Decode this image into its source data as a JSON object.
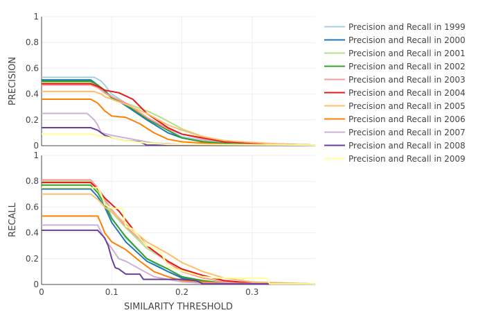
{
  "chart_data": {
    "type": "line",
    "x_axis": {
      "label": "SIMILARITY THRESHOLD",
      "range": [
        0,
        0.39
      ],
      "ticks": [
        0,
        0.1,
        0.2,
        0.3
      ],
      "tick_labels": [
        "0",
        "0.1",
        "0.2",
        "0.3"
      ]
    },
    "panels": [
      {
        "id": "precision",
        "ylabel": "PRECISION",
        "ylim": [
          0,
          1
        ],
        "yticks": [
          0,
          0.2,
          0.4,
          0.6,
          0.8,
          1
        ],
        "ytick_labels": [
          "0",
          "0.2",
          "0.4",
          "0.6",
          "0.8",
          "1"
        ]
      },
      {
        "id": "recall",
        "ylabel": "RECALL",
        "ylim": [
          0,
          1
        ],
        "yticks": [
          0,
          0.2,
          0.4,
          0.6,
          0.8,
          1
        ],
        "ytick_labels": [
          "0",
          "0.2",
          "0.4",
          "0.6",
          "0.8",
          "1"
        ]
      }
    ],
    "legend_position": "right",
    "series": [
      {
        "name": "Precision and Recall in 1999",
        "color": "#a6cee3",
        "precision": [
          [
            0,
            0.53
          ],
          [
            0.075,
            0.53
          ],
          [
            0.085,
            0.5
          ],
          [
            0.09,
            0.47
          ],
          [
            0.1,
            0.4
          ],
          [
            0.12,
            0.33
          ],
          [
            0.15,
            0.22
          ],
          [
            0.18,
            0.12
          ],
          [
            0.2,
            0.07
          ],
          [
            0.23,
            0.04
          ],
          [
            0.27,
            0.02
          ],
          [
            0.3,
            0.01
          ],
          [
            0.39,
            0.005
          ]
        ],
        "recall": [
          [
            0,
            0.79
          ],
          [
            0.07,
            0.79
          ],
          [
            0.08,
            0.74
          ],
          [
            0.09,
            0.65
          ],
          [
            0.1,
            0.52
          ],
          [
            0.12,
            0.36
          ],
          [
            0.15,
            0.2
          ],
          [
            0.18,
            0.1
          ],
          [
            0.2,
            0.06
          ],
          [
            0.23,
            0.02
          ],
          [
            0.26,
            0.01
          ],
          [
            0.39,
            0.005
          ]
        ]
      },
      {
        "name": "Precision and Recall in 2000",
        "color": "#1f78b4",
        "precision": [
          [
            0,
            0.51
          ],
          [
            0.07,
            0.51
          ],
          [
            0.08,
            0.47
          ],
          [
            0.09,
            0.42
          ],
          [
            0.1,
            0.38
          ],
          [
            0.12,
            0.31
          ],
          [
            0.15,
            0.2
          ],
          [
            0.18,
            0.1
          ],
          [
            0.2,
            0.06
          ],
          [
            0.23,
            0.03
          ],
          [
            0.27,
            0.015
          ],
          [
            0.39,
            0.005
          ]
        ],
        "recall": [
          [
            0,
            0.74
          ],
          [
            0.07,
            0.74
          ],
          [
            0.08,
            0.68
          ],
          [
            0.09,
            0.6
          ],
          [
            0.1,
            0.48
          ],
          [
            0.12,
            0.33
          ],
          [
            0.15,
            0.18
          ],
          [
            0.18,
            0.1
          ],
          [
            0.2,
            0.05
          ],
          [
            0.23,
            0.02
          ],
          [
            0.26,
            0.01
          ],
          [
            0.39,
            0.005
          ]
        ]
      },
      {
        "name": "Precision and Recall in 2001",
        "color": "#b2df8a",
        "precision": [
          [
            0,
            0.49
          ],
          [
            0.07,
            0.49
          ],
          [
            0.08,
            0.46
          ],
          [
            0.09,
            0.41
          ],
          [
            0.1,
            0.37
          ],
          [
            0.12,
            0.33
          ],
          [
            0.15,
            0.27
          ],
          [
            0.17,
            0.22
          ],
          [
            0.2,
            0.13
          ],
          [
            0.23,
            0.07
          ],
          [
            0.26,
            0.04
          ],
          [
            0.3,
            0.02
          ],
          [
            0.39,
            0.005
          ]
        ],
        "recall": [
          [
            0,
            0.8
          ],
          [
            0.07,
            0.8
          ],
          [
            0.08,
            0.73
          ],
          [
            0.09,
            0.66
          ],
          [
            0.1,
            0.56
          ],
          [
            0.12,
            0.44
          ],
          [
            0.15,
            0.28
          ],
          [
            0.18,
            0.18
          ],
          [
            0.2,
            0.11
          ],
          [
            0.23,
            0.05
          ],
          [
            0.26,
            0.02
          ],
          [
            0.39,
            0.005
          ]
        ]
      },
      {
        "name": "Precision and Recall in 2002",
        "color": "#33a02c",
        "precision": [
          [
            0,
            0.5
          ],
          [
            0.07,
            0.5
          ],
          [
            0.08,
            0.47
          ],
          [
            0.09,
            0.43
          ],
          [
            0.1,
            0.37
          ],
          [
            0.12,
            0.32
          ],
          [
            0.15,
            0.21
          ],
          [
            0.18,
            0.12
          ],
          [
            0.2,
            0.06
          ],
          [
            0.23,
            0.03
          ],
          [
            0.27,
            0.015
          ],
          [
            0.39,
            0.005
          ]
        ],
        "recall": [
          [
            0,
            0.77
          ],
          [
            0.07,
            0.77
          ],
          [
            0.08,
            0.71
          ],
          [
            0.09,
            0.62
          ],
          [
            0.1,
            0.51
          ],
          [
            0.12,
            0.37
          ],
          [
            0.15,
            0.2
          ],
          [
            0.18,
            0.12
          ],
          [
            0.2,
            0.06
          ],
          [
            0.23,
            0.03
          ],
          [
            0.26,
            0.01
          ],
          [
            0.39,
            0.005
          ]
        ]
      },
      {
        "name": "Precision and Recall in 2003",
        "color": "#fb9a99",
        "precision": [
          [
            0,
            0.47
          ],
          [
            0.07,
            0.47
          ],
          [
            0.08,
            0.45
          ],
          [
            0.09,
            0.41
          ],
          [
            0.1,
            0.38
          ],
          [
            0.12,
            0.33
          ],
          [
            0.15,
            0.22
          ],
          [
            0.18,
            0.13
          ],
          [
            0.2,
            0.09
          ],
          [
            0.23,
            0.05
          ],
          [
            0.26,
            0.03
          ],
          [
            0.3,
            0.02
          ],
          [
            0.39,
            0.005
          ]
        ],
        "recall": [
          [
            0,
            0.81
          ],
          [
            0.07,
            0.81
          ],
          [
            0.08,
            0.75
          ],
          [
            0.09,
            0.66
          ],
          [
            0.1,
            0.58
          ],
          [
            0.12,
            0.45
          ],
          [
            0.15,
            0.3
          ],
          [
            0.18,
            0.17
          ],
          [
            0.2,
            0.1
          ],
          [
            0.23,
            0.05
          ],
          [
            0.26,
            0.02
          ],
          [
            0.39,
            0.005
          ]
        ]
      },
      {
        "name": "Precision and Recall in 2004",
        "color": "#e31a1c",
        "precision": [
          [
            0,
            0.48
          ],
          [
            0.07,
            0.48
          ],
          [
            0.08,
            0.46
          ],
          [
            0.09,
            0.43
          ],
          [
            0.11,
            0.41
          ],
          [
            0.13,
            0.36
          ],
          [
            0.15,
            0.25
          ],
          [
            0.18,
            0.14
          ],
          [
            0.2,
            0.09
          ],
          [
            0.23,
            0.06
          ],
          [
            0.26,
            0.03
          ],
          [
            0.3,
            0.02
          ],
          [
            0.35,
            0.01
          ],
          [
            0.39,
            0.005
          ]
        ],
        "recall": [
          [
            0,
            0.79
          ],
          [
            0.07,
            0.79
          ],
          [
            0.08,
            0.74
          ],
          [
            0.09,
            0.67
          ],
          [
            0.11,
            0.57
          ],
          [
            0.13,
            0.43
          ],
          [
            0.15,
            0.3
          ],
          [
            0.18,
            0.18
          ],
          [
            0.2,
            0.12
          ],
          [
            0.23,
            0.07
          ],
          [
            0.26,
            0.03
          ],
          [
            0.3,
            0.01
          ],
          [
            0.39,
            0.005
          ]
        ]
      },
      {
        "name": "Precision and Recall in 2005",
        "color": "#fdbf6f",
        "precision": [
          [
            0,
            0.42
          ],
          [
            0.075,
            0.42
          ],
          [
            0.085,
            0.4
          ],
          [
            0.09,
            0.38
          ],
          [
            0.1,
            0.36
          ],
          [
            0.12,
            0.32
          ],
          [
            0.15,
            0.25
          ],
          [
            0.18,
            0.16
          ],
          [
            0.2,
            0.12
          ],
          [
            0.23,
            0.07
          ],
          [
            0.26,
            0.04
          ],
          [
            0.3,
            0.025
          ],
          [
            0.35,
            0.01
          ],
          [
            0.39,
            0.005
          ]
        ],
        "recall": [
          [
            0,
            0.7
          ],
          [
            0.07,
            0.7
          ],
          [
            0.08,
            0.66
          ],
          [
            0.09,
            0.6
          ],
          [
            0.11,
            0.52
          ],
          [
            0.13,
            0.42
          ],
          [
            0.15,
            0.33
          ],
          [
            0.18,
            0.24
          ],
          [
            0.2,
            0.17
          ],
          [
            0.23,
            0.1
          ],
          [
            0.26,
            0.05
          ],
          [
            0.3,
            0.02
          ],
          [
            0.39,
            0.005
          ]
        ]
      },
      {
        "name": "Precision and Recall in 2006",
        "color": "#ff7f00",
        "precision": [
          [
            0,
            0.36
          ],
          [
            0.07,
            0.36
          ],
          [
            0.08,
            0.33
          ],
          [
            0.09,
            0.27
          ],
          [
            0.1,
            0.23
          ],
          [
            0.12,
            0.22
          ],
          [
            0.14,
            0.17
          ],
          [
            0.16,
            0.1
          ],
          [
            0.18,
            0.05
          ],
          [
            0.2,
            0.03
          ],
          [
            0.23,
            0.02
          ],
          [
            0.26,
            0.01
          ],
          [
            0.39,
            0.005
          ]
        ],
        "recall": [
          [
            0,
            0.53
          ],
          [
            0.08,
            0.53
          ],
          [
            0.085,
            0.47
          ],
          [
            0.09,
            0.4
          ],
          [
            0.1,
            0.33
          ],
          [
            0.12,
            0.27
          ],
          [
            0.14,
            0.18
          ],
          [
            0.16,
            0.1
          ],
          [
            0.18,
            0.06
          ],
          [
            0.2,
            0.03
          ],
          [
            0.23,
            0.02
          ],
          [
            0.26,
            0.01
          ],
          [
            0.39,
            0.005
          ]
        ]
      },
      {
        "name": "Precision and Recall in 2007",
        "color": "#cab2d6",
        "precision": [
          [
            0,
            0.25
          ],
          [
            0.065,
            0.25
          ],
          [
            0.075,
            0.2
          ],
          [
            0.08,
            0.16
          ],
          [
            0.085,
            0.1
          ],
          [
            0.1,
            0.08
          ],
          [
            0.12,
            0.06
          ],
          [
            0.14,
            0.04
          ],
          [
            0.16,
            0.02
          ],
          [
            0.2,
            0.01
          ],
          [
            0.39,
            0.005
          ]
        ],
        "recall": [
          [
            0,
            0.46
          ],
          [
            0.08,
            0.46
          ],
          [
            0.09,
            0.35
          ],
          [
            0.1,
            0.28
          ],
          [
            0.11,
            0.2
          ],
          [
            0.12,
            0.18
          ],
          [
            0.14,
            0.12
          ],
          [
            0.16,
            0.06
          ],
          [
            0.18,
            0.04
          ],
          [
            0.2,
            0.02
          ],
          [
            0.23,
            0.01
          ],
          [
            0.39,
            0.005
          ]
        ]
      },
      {
        "name": "Precision and Recall in 2008",
        "color": "#6a3d9a",
        "precision": [
          [
            0,
            0.14
          ],
          [
            0.07,
            0.14
          ],
          [
            0.08,
            0.12
          ],
          [
            0.085,
            0.1
          ],
          [
            0.09,
            0.08
          ],
          [
            0.1,
            0.06
          ],
          [
            0.12,
            0.04
          ],
          [
            0.14,
            0.03
          ],
          [
            0.15,
            0.005
          ],
          [
            0.39,
            0.005
          ]
        ],
        "recall": [
          [
            0,
            0.42
          ],
          [
            0.08,
            0.42
          ],
          [
            0.09,
            0.36
          ],
          [
            0.095,
            0.3
          ],
          [
            0.1,
            0.2
          ],
          [
            0.105,
            0.13
          ],
          [
            0.11,
            0.12
          ],
          [
            0.12,
            0.08
          ],
          [
            0.14,
            0.08
          ],
          [
            0.145,
            0.04
          ],
          [
            0.2,
            0.04
          ],
          [
            0.22,
            0.03
          ],
          [
            0.23,
            0.005
          ],
          [
            0.39,
            0.005
          ]
        ]
      },
      {
        "name": "Precision and Recall in 2009",
        "color": "#ffff99",
        "precision": [
          [
            0,
            0.09
          ],
          [
            0.07,
            0.09
          ],
          [
            0.08,
            0.08
          ],
          [
            0.09,
            0.07
          ],
          [
            0.1,
            0.06
          ],
          [
            0.12,
            0.04
          ],
          [
            0.15,
            0.02
          ],
          [
            0.18,
            0.01
          ],
          [
            0.39,
            0.005
          ]
        ],
        "recall": [
          [
            0,
            0.75
          ],
          [
            0.08,
            0.75
          ],
          [
            0.085,
            0.7
          ],
          [
            0.09,
            0.62
          ],
          [
            0.1,
            0.59
          ],
          [
            0.115,
            0.59
          ],
          [
            0.12,
            0.45
          ],
          [
            0.13,
            0.43
          ],
          [
            0.135,
            0.4
          ],
          [
            0.14,
            0.36
          ],
          [
            0.15,
            0.3
          ],
          [
            0.16,
            0.29
          ],
          [
            0.17,
            0.25
          ],
          [
            0.18,
            0.14
          ],
          [
            0.19,
            0.12
          ],
          [
            0.23,
            0.06
          ],
          [
            0.25,
            0.05
          ],
          [
            0.28,
            0.05
          ],
          [
            0.32,
            0.05
          ],
          [
            0.325,
            0.005
          ],
          [
            0.39,
            0.005
          ]
        ]
      }
    ]
  }
}
